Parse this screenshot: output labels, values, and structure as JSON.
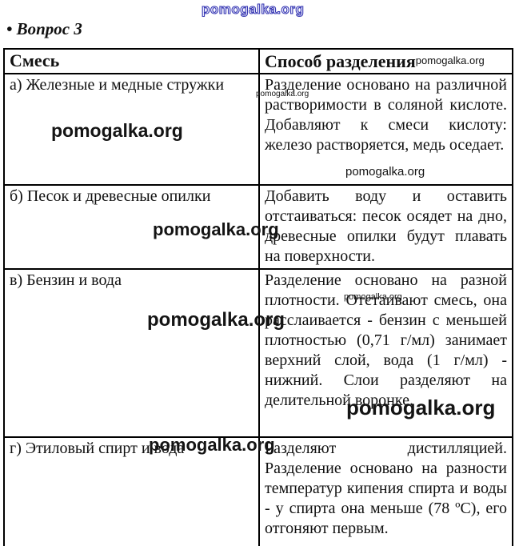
{
  "page": {
    "heading": "• Вопрос 3"
  },
  "watermark": {
    "text": "pomogalka.org",
    "accent_blue": "#3c3cb4",
    "ink": "#141414"
  },
  "table": {
    "col1_header": "Смесь",
    "col2_header": "Способ разделения",
    "rows": [
      {
        "mixture": "а) Железные и медные стружки",
        "method": "Разделение основано на различной растворимости в соляной кислоте. Добавляют к смеси кислоту: железо растворяется, медь оседает."
      },
      {
        "mixture": "б) Песок и древесные опилки",
        "method": "Добавить воду и оставить отстаиваться: песок осядет на дно, древесные опилки будут плавать на поверхности."
      },
      {
        "mixture": "в) Бензин и вода",
        "method": "Разделение основано на разной плотности. Отстаивают смесь, она расслаивается - бензин с меньшей плотностью (0,71 г/мл) занимает верхний слой, вода (1 г/мл) - нижний. Слои разделяют на делительной воронке."
      },
      {
        "mixture": "г) Этиловый спирт и вода",
        "method": "Разделяют дистилляцией. Разделение основано на разности температур кипения спирта и воды - у спирта она меньше (78 ºС), его отгоняют первым."
      }
    ]
  }
}
